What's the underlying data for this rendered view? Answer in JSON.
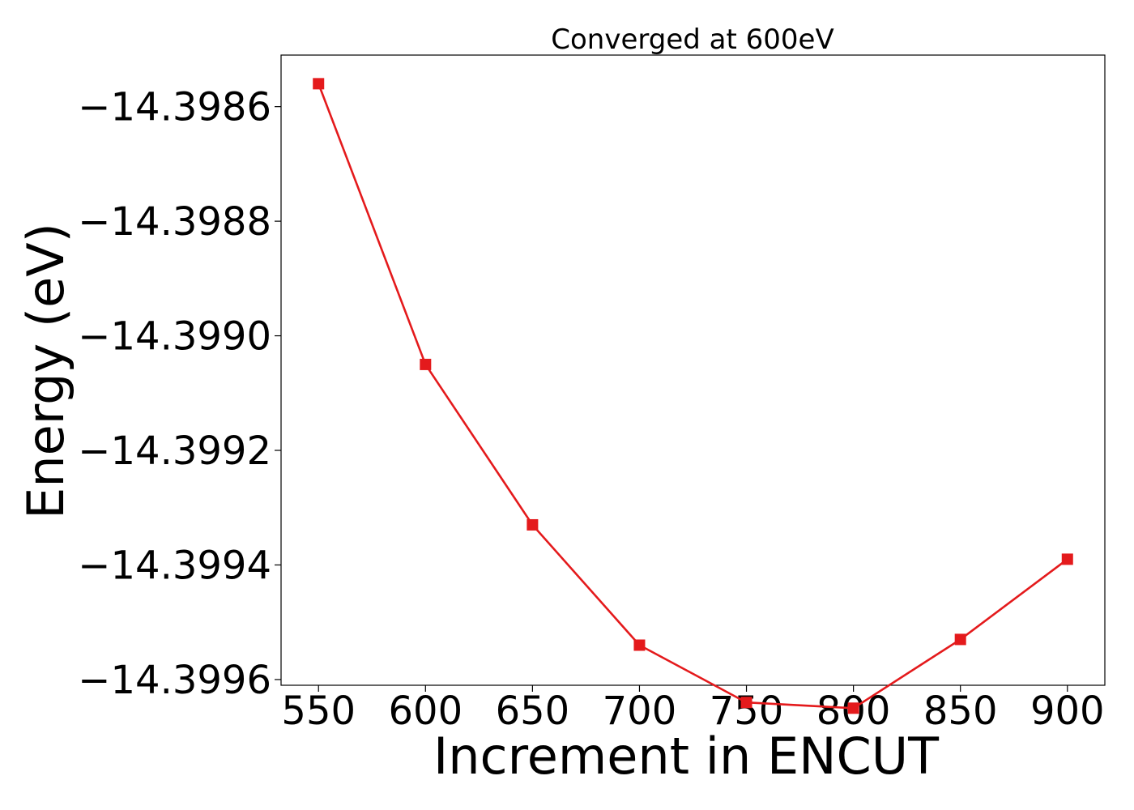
{
  "chart_data": {
    "type": "line",
    "title": "Converged at 600eV",
    "xlabel": "Increment in ENCUT",
    "ylabel": "Energy (eV)",
    "xlim": [
      532.5,
      917.5
    ],
    "ylim": [
      -14.39961,
      -14.39851
    ],
    "x_ticks": [
      550,
      600,
      650,
      700,
      750,
      800,
      850,
      900
    ],
    "x_tick_labels": [
      "550",
      "600",
      "650",
      "700",
      "750",
      "800",
      "850",
      "900"
    ],
    "y_ticks": [
      -14.3986,
      -14.3988,
      -14.399,
      -14.3992,
      -14.3994,
      -14.3996
    ],
    "y_tick_labels": [
      "−14.3986",
      "−14.3988",
      "−14.3990",
      "−14.3992",
      "−14.3994",
      "−14.3996"
    ],
    "grid": false,
    "series": [
      {
        "color": "#e41a1c",
        "marker": "square",
        "x": [
          550,
          600,
          650,
          700,
          750,
          800,
          850,
          900
        ],
        "y": [
          -14.39856,
          -14.39905,
          -14.39933,
          -14.39954,
          -14.39964,
          -14.39965,
          -14.39953,
          -14.39939
        ]
      }
    ]
  }
}
